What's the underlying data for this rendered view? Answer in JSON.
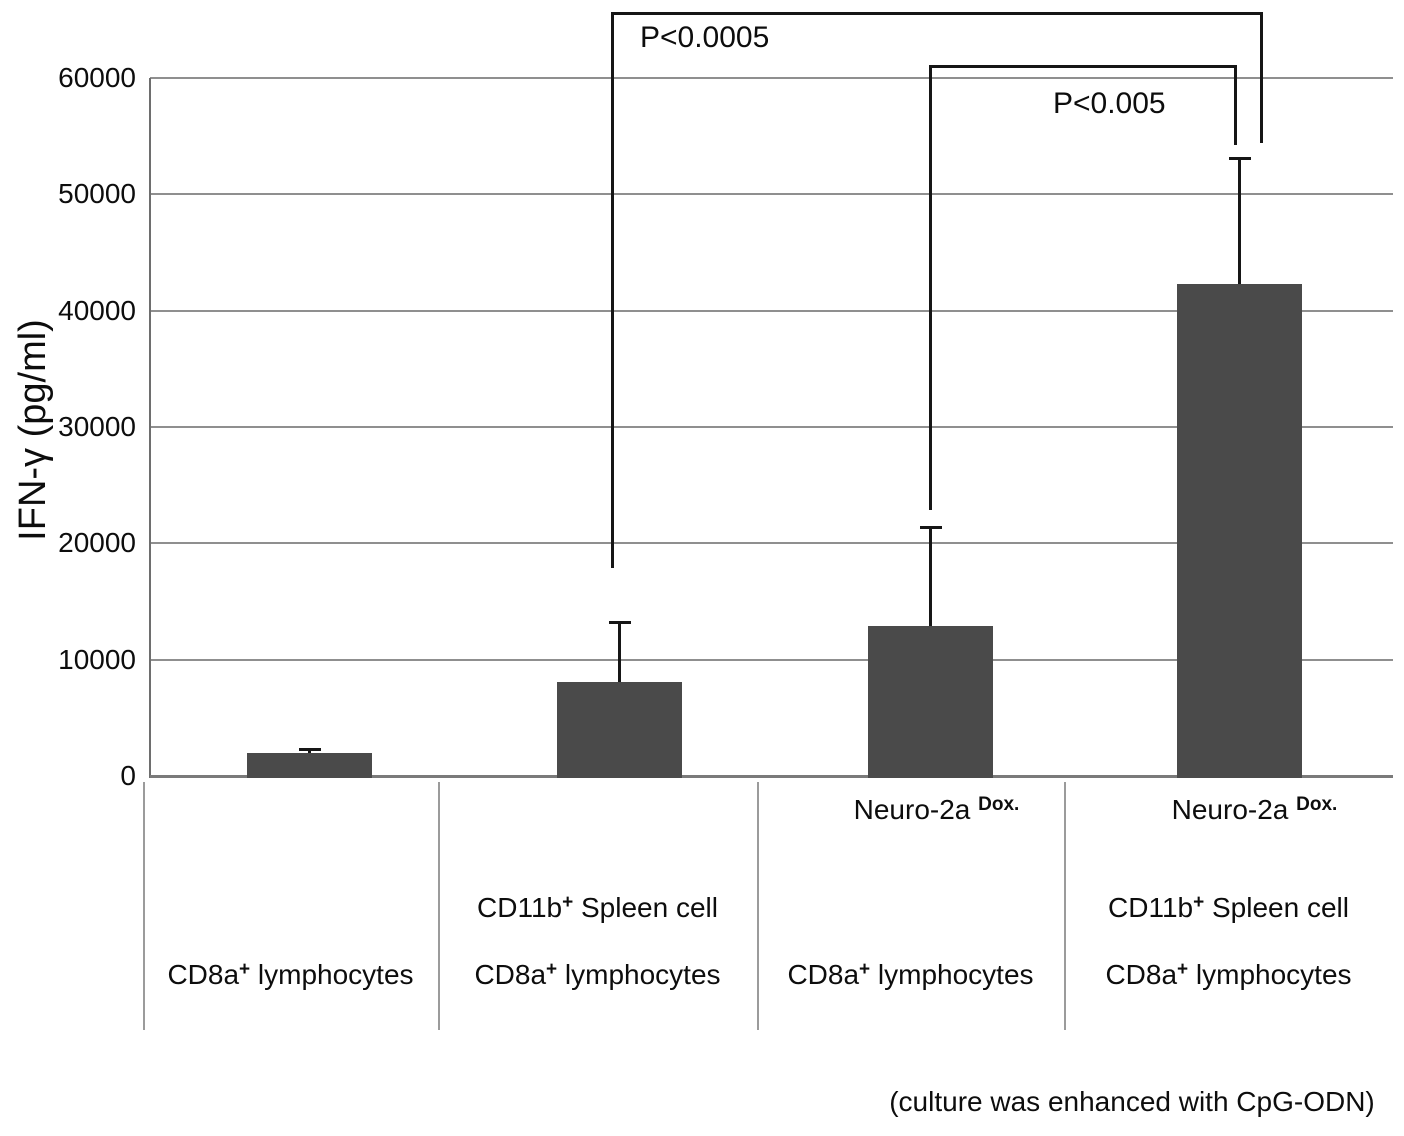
{
  "figure": {
    "caption": "(culture was enhanced with CpG-ODN)"
  },
  "chart_data": {
    "type": "bar",
    "title": "",
    "ylabel": "IFN-γ (pg/ml)",
    "xlabel": "",
    "ylim": [
      0,
      60000
    ],
    "ytick_interval": 10000,
    "ytick_labels": [
      "60000",
      "50000",
      "40000",
      "30000",
      "20000",
      "10000",
      "0"
    ],
    "grid": "horizontal",
    "legend_position": "none",
    "bar_color": "#4a4a4a",
    "axis_color": "#6e6e6e",
    "gridline_color": "#8f8f8f",
    "values": [
      2000,
      8100,
      12900,
      42300
    ],
    "errors_plus": [
      350,
      5100,
      8500,
      10800
    ],
    "categories": [
      {
        "lines": [
          {
            "row": 2,
            "parts": [
              {
                "t": "CD8a"
              },
              {
                "sup": "+"
              },
              {
                "t": " lymphocytes"
              }
            ]
          }
        ]
      },
      {
        "lines": [
          {
            "row": 1,
            "parts": [
              {
                "t": "CD11b"
              },
              {
                "sup": "+"
              },
              {
                "t": " Spleen cell"
              }
            ]
          },
          {
            "row": 2,
            "parts": [
              {
                "t": "CD8a"
              },
              {
                "sup": "+"
              },
              {
                "t": " lymphocytes"
              }
            ]
          }
        ]
      },
      {
        "lines": [
          {
            "row": 0,
            "parts": [
              {
                "t": "Neuro-2a "
              },
              {
                "sup": "Dox."
              }
            ]
          },
          {
            "row": 2,
            "parts": [
              {
                "t": "CD8a"
              },
              {
                "sup": "+"
              },
              {
                "t": " lymphocytes"
              }
            ]
          }
        ]
      },
      {
        "lines": [
          {
            "row": 0,
            "parts": [
              {
                "t": "Neuro-2a "
              },
              {
                "sup": "Dox."
              }
            ]
          },
          {
            "row": 1,
            "parts": [
              {
                "t": "CD11b"
              },
              {
                "sup": "+"
              },
              {
                "t": " Spleen cell"
              }
            ]
          },
          {
            "row": 2,
            "parts": [
              {
                "t": "CD8a"
              },
              {
                "sup": "+"
              },
              {
                "t": " lymphocytes"
              }
            ]
          }
        ]
      }
    ],
    "annotations": [
      {
        "label": "P<0.0005",
        "between": [
          "category-2",
          "category-4"
        ]
      },
      {
        "label": "P<0.005",
        "between": [
          "category-3",
          "category-4"
        ]
      }
    ]
  }
}
